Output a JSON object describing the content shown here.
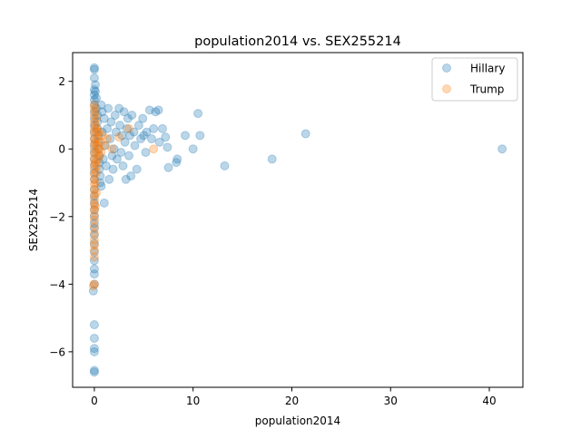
{
  "chart_data": {
    "type": "scatter",
    "title": "population2014 vs. SEX255214",
    "xlabel": "population2014",
    "ylabel": "SEX255214",
    "xlim": [
      -2.2,
      43.4
    ],
    "ylim": [
      -7.05,
      2.85
    ],
    "x_ticks": [
      0,
      10,
      20,
      30,
      40
    ],
    "x_tick_labels": [
      "0",
      "10",
      "20",
      "30",
      "40"
    ],
    "y_ticks": [
      2,
      0,
      -2,
      -4,
      -6
    ],
    "y_tick_labels": [
      "2",
      "0",
      "−2",
      "−4",
      "−6"
    ],
    "grid": false,
    "legend_position": "top-right",
    "series": [
      {
        "name": "Hillary",
        "color": "#1f77b4",
        "points": [
          [
            0,
            2.4
          ],
          [
            0,
            2.35
          ],
          [
            0,
            2.1
          ],
          [
            0,
            1.75
          ],
          [
            0,
            1.6
          ],
          [
            0,
            1.45
          ],
          [
            0,
            1.3
          ],
          [
            0,
            1.1
          ],
          [
            0,
            0.9
          ],
          [
            0,
            0.7
          ],
          [
            0,
            0.5
          ],
          [
            0,
            0.3
          ],
          [
            0,
            0.1
          ],
          [
            0,
            -0.1
          ],
          [
            0,
            -0.3
          ],
          [
            0,
            -0.5
          ],
          [
            0,
            -0.7
          ],
          [
            0,
            -0.9
          ],
          [
            0,
            -1.2
          ],
          [
            0,
            -1.4
          ],
          [
            0,
            -1.6
          ],
          [
            0,
            -1.8
          ],
          [
            0,
            -2.0
          ],
          [
            0,
            -2.2
          ],
          [
            0,
            -2.35
          ],
          [
            0,
            -2.55
          ],
          [
            0,
            -2.8
          ],
          [
            0,
            -3.05
          ],
          [
            0,
            -3.3
          ],
          [
            0,
            -3.55
          ],
          [
            0,
            -3.7
          ],
          [
            0,
            -4.0
          ],
          [
            -0.1,
            -4.2
          ],
          [
            0,
            -5.2
          ],
          [
            0,
            -5.6
          ],
          [
            0,
            -5.9
          ],
          [
            0,
            -6.0
          ],
          [
            0,
            -6.55
          ],
          [
            0,
            -6.6
          ],
          [
            0.1,
            1.9
          ],
          [
            0.1,
            1.7
          ],
          [
            0.2,
            1.5
          ],
          [
            0.2,
            1.2
          ],
          [
            0.3,
            1.0
          ],
          [
            0.3,
            0.8
          ],
          [
            0.3,
            0.6
          ],
          [
            0.4,
            0.4
          ],
          [
            0.4,
            0.2
          ],
          [
            0.4,
            0.0
          ],
          [
            0.5,
            -0.2
          ],
          [
            0.5,
            -0.4
          ],
          [
            0.5,
            -0.6
          ],
          [
            0.6,
            -0.8
          ],
          [
            0.6,
            -1.0
          ],
          [
            0.7,
            -1.1
          ],
          [
            0.7,
            1.3
          ],
          [
            0.8,
            1.1
          ],
          [
            0.8,
            0.5
          ],
          [
            0.9,
            -0.3
          ],
          [
            1.0,
            -1.6
          ],
          [
            1.0,
            0.9
          ],
          [
            1.1,
            0.1
          ],
          [
            1.2,
            -0.5
          ],
          [
            1.3,
            0.6
          ],
          [
            1.4,
            1.2
          ],
          [
            1.5,
            -0.9
          ],
          [
            1.6,
            0.3
          ],
          [
            1.7,
            0.8
          ],
          [
            1.8,
            -0.2
          ],
          [
            1.9,
            -0.6
          ],
          [
            2.0,
            0.0
          ],
          [
            2.1,
            1.0
          ],
          [
            2.2,
            0.5
          ],
          [
            2.3,
            -0.3
          ],
          [
            2.5,
            1.2
          ],
          [
            2.6,
            0.7
          ],
          [
            2.7,
            -0.1
          ],
          [
            2.8,
            0.4
          ],
          [
            2.9,
            -0.5
          ],
          [
            3.0,
            1.1
          ],
          [
            3.1,
            0.2
          ],
          [
            3.2,
            -0.9
          ],
          [
            3.3,
            0.6
          ],
          [
            3.4,
            0.9
          ],
          [
            3.5,
            -0.2
          ],
          [
            3.6,
            0.4
          ],
          [
            3.7,
            -0.8
          ],
          [
            3.8,
            1.0
          ],
          [
            4.0,
            0.5
          ],
          [
            4.1,
            0.1
          ],
          [
            4.3,
            -0.6
          ],
          [
            4.5,
            0.7
          ],
          [
            4.7,
            0.3
          ],
          [
            4.9,
            0.9
          ],
          [
            5.0,
            0.4
          ],
          [
            5.2,
            -0.1
          ],
          [
            5.3,
            0.5
          ],
          [
            5.6,
            1.15
          ],
          [
            5.8,
            0.3
          ],
          [
            6.0,
            0.6
          ],
          [
            6.2,
            1.1
          ],
          [
            6.5,
            1.15
          ],
          [
            6.6,
            0.2
          ],
          [
            6.9,
            0.6
          ],
          [
            7.2,
            0.35
          ],
          [
            7.4,
            0.05
          ],
          [
            7.5,
            -0.55
          ],
          [
            8.3,
            -0.4
          ],
          [
            8.4,
            -0.3
          ],
          [
            9.2,
            0.4
          ],
          [
            10.0,
            0.0
          ],
          [
            10.5,
            1.05
          ],
          [
            10.7,
            0.4
          ],
          [
            13.2,
            -0.5
          ],
          [
            18.0,
            -0.3
          ],
          [
            21.4,
            0.45
          ],
          [
            41.3,
            0.0
          ]
        ]
      },
      {
        "name": "Trump",
        "color": "#ff7f0e",
        "points": [
          [
            0,
            1.3
          ],
          [
            0,
            1.2
          ],
          [
            0,
            1.0
          ],
          [
            0,
            0.8
          ],
          [
            0,
            0.6
          ],
          [
            0,
            0.45
          ],
          [
            0,
            0.3
          ],
          [
            0,
            0.15
          ],
          [
            0,
            0.0
          ],
          [
            0,
            -0.15
          ],
          [
            0,
            -0.3
          ],
          [
            0,
            -0.45
          ],
          [
            0,
            -0.6
          ],
          [
            0,
            -0.75
          ],
          [
            0,
            -0.9
          ],
          [
            0,
            -1.05
          ],
          [
            0,
            -1.2
          ],
          [
            0,
            -1.35
          ],
          [
            0,
            -1.5
          ],
          [
            0,
            -1.65
          ],
          [
            0,
            -1.8
          ],
          [
            0,
            -1.95
          ],
          [
            0,
            -2.1
          ],
          [
            0,
            -2.3
          ],
          [
            0,
            -2.5
          ],
          [
            0,
            -2.7
          ],
          [
            0,
            -2.85
          ],
          [
            0,
            -3.0
          ],
          [
            0,
            -3.2
          ],
          [
            0,
            -4.0
          ],
          [
            -0.1,
            -4.05
          ],
          [
            0.1,
            1.1
          ],
          [
            0.1,
            0.7
          ],
          [
            0.1,
            0.2
          ],
          [
            0.1,
            -0.4
          ],
          [
            0.1,
            -1.0
          ],
          [
            0.1,
            -1.7
          ],
          [
            0.2,
            0.9
          ],
          [
            0.2,
            0.5
          ],
          [
            0.2,
            -0.1
          ],
          [
            0.2,
            -0.7
          ],
          [
            0.2,
            -1.3
          ],
          [
            0.3,
            0.6
          ],
          [
            0.3,
            0.1
          ],
          [
            0.3,
            -0.5
          ],
          [
            0.4,
            0.3
          ],
          [
            0.4,
            -0.3
          ],
          [
            0.5,
            0.5
          ],
          [
            0.5,
            0.0
          ],
          [
            0.5,
            -0.2
          ],
          [
            0.6,
            0.2
          ],
          [
            0.7,
            -0.1
          ],
          [
            0.8,
            0.4
          ],
          [
            1.0,
            0.1
          ],
          [
            1.3,
            0.3
          ],
          [
            1.8,
            0.0
          ],
          [
            2.5,
            0.35
          ],
          [
            3.5,
            0.6
          ],
          [
            6.0,
            0.0
          ]
        ]
      }
    ]
  }
}
